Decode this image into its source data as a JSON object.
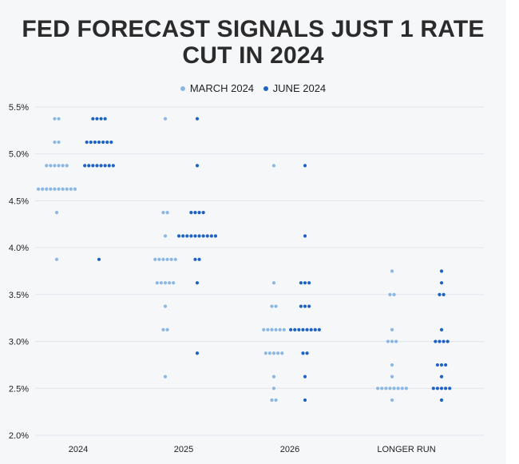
{
  "title_line1": "FED FORECAST SIGNALS JUST 1 RATE",
  "title_line2": "CUT IN 2024",
  "colors": {
    "march": "#8ab7e4",
    "june": "#1d62c4",
    "grid": "#dfe5ec",
    "text": "#222222"
  },
  "chart_data": {
    "type": "scatter",
    "title": "FED FORECAST SIGNALS JUST 1 RATE CUT IN 2024",
    "categories": [
      "2024",
      "2025",
      "2026",
      "LONGER RUN"
    ],
    "y_ticks": [
      "2.0%",
      "2.5%",
      "3.0%",
      "3.5%",
      "4.0%",
      "4.5%",
      "5.0%",
      "5.5%"
    ],
    "ylim": [
      2.0,
      5.5
    ],
    "grid": true,
    "legend_position": "top-center",
    "series": [
      {
        "name": "MARCH 2024",
        "color": "#8ab7e4",
        "points": {
          "2024": [
            [
              5.375,
              2
            ],
            [
              5.125,
              2
            ],
            [
              4.875,
              6
            ],
            [
              4.625,
              10
            ],
            [
              4.375,
              1
            ],
            [
              3.875,
              1
            ]
          ],
          "2025": [
            [
              5.375,
              1
            ],
            [
              4.375,
              2
            ],
            [
              4.125,
              1
            ],
            [
              3.875,
              6
            ],
            [
              3.625,
              5
            ],
            [
              3.375,
              1
            ],
            [
              3.125,
              2
            ],
            [
              2.625,
              1
            ]
          ],
          "2026": [
            [
              4.875,
              1
            ],
            [
              3.625,
              1
            ],
            [
              3.375,
              2
            ],
            [
              3.125,
              6
            ],
            [
              2.875,
              5
            ],
            [
              2.625,
              1
            ],
            [
              2.5,
              1
            ],
            [
              2.375,
              2
            ]
          ],
          "LONGER RUN": [
            [
              3.75,
              1
            ],
            [
              3.5,
              2
            ],
            [
              3.125,
              1
            ],
            [
              3.0,
              3
            ],
            [
              2.75,
              1
            ],
            [
              2.625,
              1
            ],
            [
              2.5,
              8
            ],
            [
              2.375,
              1
            ]
          ]
        }
      },
      {
        "name": "JUNE 2024",
        "color": "#1d62c4",
        "points": {
          "2024": [
            [
              5.375,
              4
            ],
            [
              5.125,
              7
            ],
            [
              4.875,
              8
            ],
            [
              3.875,
              1
            ]
          ],
          "2025": [
            [
              5.375,
              1
            ],
            [
              4.875,
              1
            ],
            [
              4.375,
              4
            ],
            [
              4.125,
              10
            ],
            [
              3.875,
              2
            ],
            [
              3.625,
              1
            ],
            [
              2.875,
              1
            ]
          ],
          "2026": [
            [
              4.875,
              1
            ],
            [
              4.125,
              1
            ],
            [
              3.625,
              3
            ],
            [
              3.375,
              3
            ],
            [
              3.125,
              8
            ],
            [
              2.875,
              2
            ],
            [
              2.625,
              1
            ],
            [
              2.375,
              1
            ]
          ],
          "LONGER RUN": [
            [
              3.75,
              1
            ],
            [
              3.625,
              1
            ],
            [
              3.5,
              2
            ],
            [
              3.125,
              1
            ],
            [
              3.0,
              4
            ],
            [
              2.75,
              3
            ],
            [
              2.625,
              1
            ],
            [
              2.5,
              5
            ],
            [
              2.375,
              1
            ]
          ]
        }
      }
    ]
  }
}
